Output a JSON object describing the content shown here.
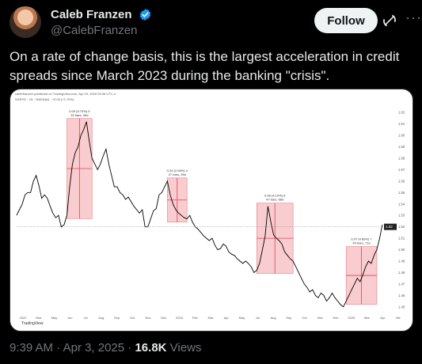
{
  "author": {
    "name": "Caleb Franzen",
    "handle": "@CalebFranzen"
  },
  "follow_label": "Follow",
  "more_label": "···",
  "tweet_text": "On a rate of change basis, this is the largest acceleration in credit spreads since March 2023 during the banking \"crisis\".",
  "footer": {
    "time": "9:39 AM",
    "sep1": " · ",
    "date": "Apr 3, 2025",
    "sep2": " · ",
    "views_count": "16.8K",
    "views_label": " Views"
  },
  "colors": {
    "background": "#000000",
    "verified": "#1d9bf0",
    "highlight_box": "#f4a3a8",
    "series": "#000000"
  },
  "chart_data": {
    "type": "line",
    "header_line_1": "calebfranzen published on TradingView.com, Apr 03, 2025 09:36 UTC-4",
    "header_line_2": "SGRYD · 1D · NASDAQ · +0.03 (+1.70%)",
    "watermark": "TradingView",
    "x_ticks": [
      "2022",
      "Mar",
      "May",
      "Jun",
      "Jul",
      "Aug",
      "Sep",
      "Oct",
      "Nov",
      "Dec",
      "2024",
      "Feb",
      "Mar",
      "Apr",
      "May",
      "Jul",
      "Aug",
      "Sep",
      "Oct",
      "Nov",
      "Dec",
      "2025",
      "Mar",
      "Apr",
      "Me"
    ],
    "y_ticks": [
      "1.62",
      "1.61",
      "1.60",
      "1.59",
      "1.58",
      "1.57",
      "1.56",
      "1.55",
      "1.54",
      "1.53",
      "1.52",
      "1.51",
      "1.50",
      "1.49",
      "1.48",
      "1.47",
      "1.46",
      "1.45"
    ],
    "current_value": "1.52",
    "y_range": [
      1.445,
      1.625
    ],
    "annotations": [
      {
        "label_1": "0.09 (5.73%) 0",
        "label_2": "32 bars, 45d"
      },
      {
        "label_1": "0.04 (2.06%) 4",
        "label_2": "27 bars, 39d"
      },
      {
        "label_1": "0.06 (4.10%) 6",
        "label_2": "47 bars, 66d"
      },
      {
        "label_1": "0.07 (4.86%) 7",
        "label_2": "49 bars, 71d"
      }
    ],
    "series": [
      {
        "values": [
          1.53,
          1.535,
          1.54,
          1.548,
          1.55,
          1.55,
          1.56,
          1.565,
          1.556,
          1.545,
          1.548,
          1.545,
          1.538,
          1.532,
          1.528,
          1.53,
          1.52,
          1.522,
          1.53,
          1.555,
          1.575,
          1.585,
          1.59,
          1.6,
          1.605,
          1.612,
          1.595,
          1.58,
          1.575,
          1.57,
          1.575,
          1.582,
          1.588,
          1.575,
          1.565,
          1.555,
          1.555,
          1.55,
          1.548,
          1.544,
          1.546,
          1.542,
          1.538,
          1.535,
          1.532,
          1.535,
          1.52,
          1.52,
          1.527,
          1.534,
          1.536,
          1.548,
          1.55,
          1.555,
          1.56,
          1.548,
          1.54,
          1.535,
          1.532,
          1.53,
          1.528,
          1.527,
          1.53,
          1.524,
          1.52,
          1.518,
          1.515,
          1.512,
          1.51,
          1.508,
          1.51,
          1.504,
          1.5,
          1.501,
          1.505,
          1.503,
          1.498,
          1.496,
          1.495,
          1.492,
          1.49,
          1.488,
          1.49,
          1.488,
          1.485,
          1.48,
          1.482,
          1.488,
          1.5,
          1.512,
          1.538,
          1.525,
          1.513,
          1.51,
          1.508,
          1.505,
          1.498,
          1.495,
          1.492,
          1.49,
          1.485,
          1.48,
          1.475,
          1.47,
          1.467,
          1.463,
          1.465,
          1.46,
          1.458,
          1.462,
          1.46,
          1.455,
          1.458,
          1.462,
          1.458,
          1.455,
          1.452,
          1.45,
          1.455,
          1.46,
          1.465,
          1.47,
          1.475,
          1.472,
          1.478,
          1.485,
          1.49,
          1.488,
          1.495,
          1.5,
          1.51,
          1.522
        ]
      }
    ]
  }
}
